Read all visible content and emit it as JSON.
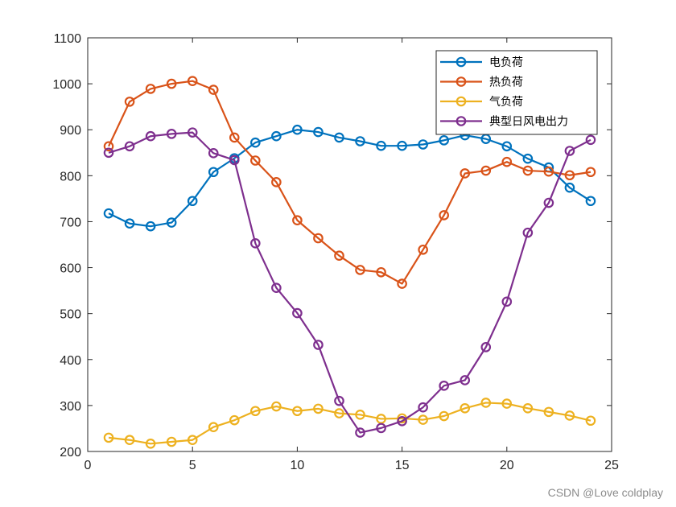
{
  "chart_data": {
    "type": "line",
    "title": "",
    "xlabel": "",
    "ylabel": "",
    "xlim": [
      0,
      25
    ],
    "ylim": [
      200,
      1100
    ],
    "xticks": [
      0,
      5,
      10,
      15,
      20,
      25
    ],
    "yticks": [
      200,
      300,
      400,
      500,
      600,
      700,
      800,
      900,
      1000,
      1100
    ],
    "grid": false,
    "legend_position": "top-right",
    "x": [
      1,
      2,
      3,
      4,
      5,
      6,
      7,
      8,
      9,
      10,
      11,
      12,
      13,
      14,
      15,
      16,
      17,
      18,
      19,
      20,
      21,
      22,
      23,
      24
    ],
    "series": [
      {
        "name": "电负荷",
        "color": "#0072BD",
        "values": [
          718,
          696,
          690,
          698,
          745,
          808,
          838,
          872,
          886,
          900,
          895,
          883,
          875,
          865,
          865,
          868,
          877,
          888,
          880,
          864,
          837,
          818,
          774,
          745
        ]
      },
      {
        "name": "热负荷",
        "color": "#D95319",
        "values": [
          864,
          961,
          989,
          1000,
          1006,
          987,
          883,
          833,
          786,
          703,
          664,
          626,
          595,
          590,
          565,
          639,
          714,
          805,
          811,
          830,
          811,
          809,
          801,
          808
        ]
      },
      {
        "name": "气负荷",
        "color": "#EDB120",
        "values": [
          230,
          225,
          217,
          221,
          225,
          253,
          268,
          288,
          298,
          288,
          293,
          283,
          280,
          271,
          272,
          269,
          277,
          294,
          306,
          304,
          294,
          286,
          278,
          267
        ]
      },
      {
        "name": "典型日风电出力",
        "color": "#7E2F8E",
        "values": [
          850,
          864,
          886,
          891,
          894,
          849,
          834,
          653,
          556,
          501,
          432,
          310,
          241,
          251,
          266,
          296,
          343,
          355,
          427,
          526,
          676,
          741,
          854,
          878
        ]
      }
    ]
  },
  "watermark": "CSDN @Love coldplay"
}
